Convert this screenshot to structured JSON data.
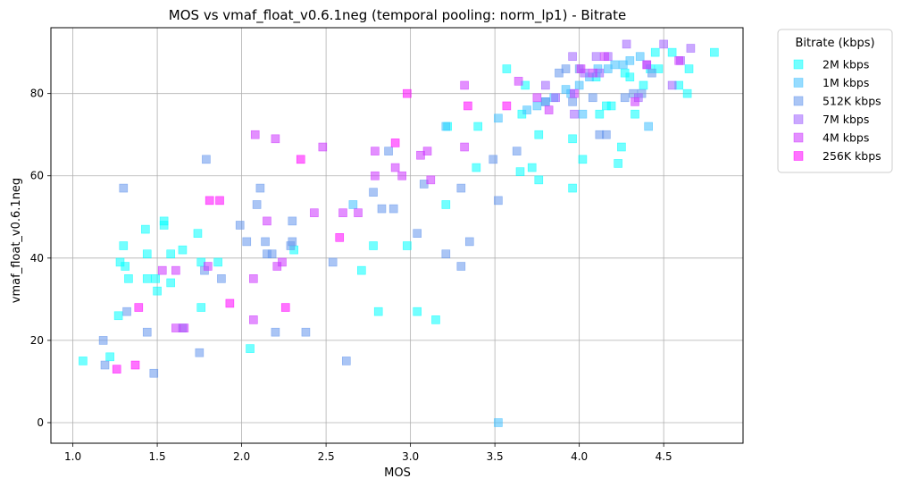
{
  "chart_data": {
    "type": "scatter",
    "title": "MOS vs vmaf_float_v0.6.1neg (temporal pooling: norm_lp1) - Bitrate",
    "xlabel": "MOS",
    "ylabel": "vmaf_float_v0.6.1neg",
    "xlim": [
      0.87,
      4.97
    ],
    "ylim": [
      -5,
      96
    ],
    "xticks": [
      "1.0",
      "1.5",
      "2.0",
      "2.5",
      "3.0",
      "3.5",
      "4.0",
      "4.5"
    ],
    "xtick_values": [
      1.0,
      1.5,
      2.0,
      2.5,
      3.0,
      3.5,
      4.0,
      4.5
    ],
    "yticks": [
      "0",
      "20",
      "40",
      "60",
      "80"
    ],
    "ytick_values": [
      0,
      20,
      40,
      60,
      80
    ],
    "grid": true,
    "legend_title": "Bitrate (kbps)",
    "legend_placement": "outside-top-right",
    "series": [
      {
        "name": "2M kbps",
        "color": "#00ffff",
        "points": [
          [
            1.06,
            15
          ],
          [
            1.22,
            16
          ],
          [
            1.27,
            26
          ],
          [
            1.28,
            39
          ],
          [
            1.3,
            43
          ],
          [
            1.31,
            38
          ],
          [
            1.33,
            35
          ],
          [
            1.43,
            47
          ],
          [
            1.44,
            41
          ],
          [
            1.44,
            35
          ],
          [
            1.49,
            35
          ],
          [
            1.5,
            32
          ],
          [
            1.54,
            48
          ],
          [
            1.54,
            49
          ],
          [
            1.58,
            34
          ],
          [
            1.58,
            41
          ],
          [
            1.65,
            42
          ],
          [
            1.74,
            46
          ],
          [
            1.76,
            39
          ],
          [
            1.76,
            28
          ],
          [
            1.86,
            39
          ],
          [
            2.05,
            18
          ],
          [
            2.31,
            42
          ],
          [
            2.71,
            37
          ],
          [
            2.78,
            43
          ],
          [
            2.81,
            27
          ],
          [
            2.98,
            43
          ],
          [
            3.04,
            27
          ],
          [
            3.15,
            25
          ],
          [
            3.22,
            72
          ],
          [
            3.21,
            53
          ],
          [
            3.39,
            62
          ],
          [
            3.4,
            72
          ],
          [
            3.57,
            86
          ],
          [
            3.65,
            61
          ],
          [
            3.66,
            75
          ],
          [
            3.68,
            82
          ],
          [
            3.72,
            62
          ],
          [
            3.76,
            70
          ],
          [
            3.76,
            59
          ],
          [
            3.96,
            69
          ],
          [
            3.96,
            57
          ],
          [
            4.02,
            64
          ],
          [
            4.1,
            84
          ],
          [
            4.12,
            75
          ],
          [
            4.16,
            77
          ],
          [
            4.19,
            77
          ],
          [
            4.23,
            63
          ],
          [
            4.25,
            67
          ],
          [
            4.27,
            85
          ],
          [
            4.3,
            84
          ],
          [
            4.33,
            75
          ],
          [
            4.38,
            82
          ],
          [
            4.42,
            86
          ],
          [
            4.45,
            90
          ],
          [
            4.47,
            86
          ],
          [
            4.55,
            90
          ],
          [
            4.59,
            82
          ],
          [
            4.64,
            80
          ],
          [
            4.65,
            86
          ],
          [
            4.8,
            90
          ]
        ]
      },
      {
        "name": "1M kbps",
        "color": "#40bfff",
        "points": [
          [
            2.66,
            53
          ],
          [
            3.21,
            72
          ],
          [
            3.52,
            74
          ],
          [
            3.52,
            0
          ],
          [
            3.69,
            76
          ],
          [
            3.75,
            77
          ],
          [
            3.8,
            78
          ],
          [
            3.85,
            79
          ],
          [
            3.92,
            81
          ],
          [
            3.95,
            80
          ],
          [
            4.0,
            82
          ],
          [
            4.06,
            84
          ],
          [
            4.11,
            86
          ],
          [
            4.17,
            86
          ],
          [
            4.21,
            87
          ],
          [
            4.26,
            87
          ],
          [
            4.3,
            88
          ],
          [
            4.36,
            89
          ],
          [
            4.41,
            72
          ],
          [
            4.02,
            75
          ]
        ]
      },
      {
        "name": "512K kbps",
        "color": "#6495ed",
        "points": [
          [
            1.18,
            20
          ],
          [
            1.19,
            14
          ],
          [
            1.3,
            57
          ],
          [
            1.32,
            27
          ],
          [
            1.44,
            22
          ],
          [
            1.48,
            12
          ],
          [
            1.65,
            23
          ],
          [
            1.75,
            17
          ],
          [
            1.78,
            37
          ],
          [
            1.79,
            64
          ],
          [
            1.88,
            35
          ],
          [
            1.99,
            48
          ],
          [
            2.03,
            44
          ],
          [
            2.09,
            53
          ],
          [
            2.11,
            57
          ],
          [
            2.14,
            44
          ],
          [
            2.15,
            41
          ],
          [
            2.18,
            41
          ],
          [
            2.2,
            22
          ],
          [
            2.29,
            43
          ],
          [
            2.3,
            49
          ],
          [
            2.3,
            44
          ],
          [
            2.38,
            22
          ],
          [
            2.54,
            39
          ],
          [
            2.62,
            15
          ],
          [
            2.78,
            56
          ],
          [
            2.83,
            52
          ],
          [
            2.87,
            66
          ],
          [
            2.9,
            52
          ],
          [
            3.04,
            46
          ],
          [
            3.08,
            58
          ],
          [
            3.21,
            41
          ],
          [
            3.3,
            57
          ],
          [
            3.3,
            38
          ],
          [
            3.35,
            44
          ],
          [
            3.49,
            64
          ],
          [
            3.52,
            54
          ],
          [
            3.63,
            66
          ],
          [
            3.8,
            78
          ],
          [
            3.88,
            85
          ],
          [
            3.92,
            86
          ],
          [
            3.96,
            78
          ],
          [
            4.0,
            86
          ],
          [
            4.08,
            79
          ],
          [
            4.12,
            70
          ],
          [
            4.16,
            70
          ],
          [
            4.27,
            79
          ],
          [
            4.32,
            80
          ],
          [
            4.37,
            80
          ],
          [
            4.43,
            85
          ]
        ]
      },
      {
        "name": "7M kbps",
        "color": "#9f60ff",
        "points": [
          [
            3.8,
            82
          ],
          [
            3.86,
            79
          ],
          [
            3.96,
            89
          ],
          [
            3.97,
            75
          ],
          [
            4.03,
            85
          ],
          [
            4.1,
            89
          ],
          [
            4.12,
            85
          ],
          [
            4.17,
            89
          ],
          [
            4.28,
            92
          ],
          [
            4.35,
            79
          ],
          [
            4.4,
            87
          ],
          [
            4.5,
            92
          ],
          [
            4.55,
            82
          ],
          [
            4.6,
            88
          ],
          [
            4.66,
            91
          ]
        ]
      },
      {
        "name": "4M kbps",
        "color": "#cc33ff",
        "points": [
          [
            1.53,
            37
          ],
          [
            1.61,
            23
          ],
          [
            1.61,
            37
          ],
          [
            1.66,
            23
          ],
          [
            1.8,
            38
          ],
          [
            2.07,
            35
          ],
          [
            2.07,
            25
          ],
          [
            2.08,
            70
          ],
          [
            2.15,
            49
          ],
          [
            2.21,
            38
          ],
          [
            2.2,
            69
          ],
          [
            2.24,
            39
          ],
          [
            2.43,
            51
          ],
          [
            2.48,
            67
          ],
          [
            2.6,
            51
          ],
          [
            2.69,
            51
          ],
          [
            2.79,
            66
          ],
          [
            2.79,
            60
          ],
          [
            2.91,
            62
          ],
          [
            2.95,
            60
          ],
          [
            3.06,
            65
          ],
          [
            3.1,
            66
          ],
          [
            3.12,
            59
          ],
          [
            3.32,
            67
          ],
          [
            3.32,
            82
          ],
          [
            3.64,
            83
          ],
          [
            3.75,
            79
          ],
          [
            3.82,
            76
          ],
          [
            3.97,
            80
          ],
          [
            4.01,
            86
          ],
          [
            4.08,
            85
          ],
          [
            4.15,
            89
          ],
          [
            4.33,
            78
          ],
          [
            4.4,
            87
          ],
          [
            4.59,
            88
          ]
        ]
      },
      {
        "name": "256K kbps",
        "color": "#ff00ff",
        "points": [
          [
            1.26,
            13
          ],
          [
            1.37,
            14
          ],
          [
            1.39,
            28
          ],
          [
            1.81,
            54
          ],
          [
            1.87,
            54
          ],
          [
            1.93,
            29
          ],
          [
            2.26,
            28
          ],
          [
            2.35,
            64
          ],
          [
            2.58,
            45
          ],
          [
            2.91,
            68
          ],
          [
            2.98,
            80
          ],
          [
            3.34,
            77
          ],
          [
            3.57,
            77
          ]
        ]
      }
    ]
  }
}
